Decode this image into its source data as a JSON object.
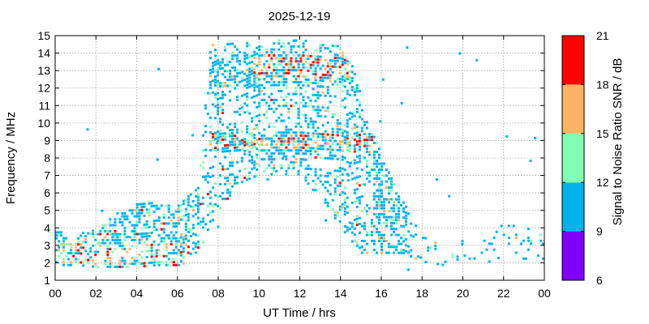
{
  "chart_data": {
    "type": "heatmap",
    "title": "2025-12-19",
    "xlabel": "UT Time / hrs",
    "ylabel": "Frequency / MHz",
    "xlim": [
      0,
      24
    ],
    "ylim": [
      1,
      15
    ],
    "x_ticks": [
      "00",
      "02",
      "04",
      "06",
      "08",
      "10",
      "12",
      "14",
      "16",
      "18",
      "20",
      "22",
      "00"
    ],
    "y_ticks": [
      "1",
      "2",
      "3",
      "4",
      "5",
      "6",
      "7",
      "8",
      "9",
      "10",
      "11",
      "12",
      "13",
      "14",
      "15"
    ],
    "grid": true,
    "colorbar": {
      "label": "Signal to Noise Ratio SNR / dB",
      "ticks": [
        "6",
        "9",
        "12",
        "15",
        "18",
        "21"
      ],
      "bands": [
        {
          "from": 6,
          "to": 9,
          "color": "#7f00ff"
        },
        {
          "from": 9,
          "to": 12,
          "color": "#00b4eb"
        },
        {
          "from": 12,
          "to": 15,
          "color": "#80ffb4"
        },
        {
          "from": 15,
          "to": 18,
          "color": "#ffb360"
        },
        {
          "from": 18,
          "to": 21,
          "color": "#ff0000"
        }
      ]
    },
    "activity_envelope": [
      {
        "time": 0.0,
        "fmin": 1.8,
        "fmax": 3.8
      },
      {
        "time": 1.0,
        "fmin": 1.8,
        "fmax": 3.6
      },
      {
        "time": 2.0,
        "fmin": 1.7,
        "fmax": 3.8
      },
      {
        "time": 3.0,
        "fmin": 1.7,
        "fmax": 4.8
      },
      {
        "time": 4.0,
        "fmin": 1.7,
        "fmax": 5.3
      },
      {
        "time": 5.0,
        "fmin": 1.8,
        "fmax": 5.4
      },
      {
        "time": 6.0,
        "fmin": 1.8,
        "fmax": 5.2
      },
      {
        "time": 6.5,
        "fmin": 2.0,
        "fmax": 5.8
      },
      {
        "time": 7.0,
        "fmin": 2.5,
        "fmax": 6.5
      },
      {
        "time": 7.5,
        "fmin": 4.0,
        "fmax": 14.5
      },
      {
        "time": 8.0,
        "fmin": 5.0,
        "fmax": 14.5
      },
      {
        "time": 9.0,
        "fmin": 6.5,
        "fmax": 14.5
      },
      {
        "time": 10.0,
        "fmin": 7.0,
        "fmax": 14.5
      },
      {
        "time": 11.0,
        "fmin": 7.0,
        "fmax": 14.8
      },
      {
        "time": 12.0,
        "fmin": 7.0,
        "fmax": 14.8
      },
      {
        "time": 13.0,
        "fmin": 5.5,
        "fmax": 14.5
      },
      {
        "time": 14.0,
        "fmin": 4.0,
        "fmax": 14.5
      },
      {
        "time": 14.5,
        "fmin": 3.0,
        "fmax": 13.5
      },
      {
        "time": 15.0,
        "fmin": 2.5,
        "fmax": 11.0
      },
      {
        "time": 16.0,
        "fmin": 2.5,
        "fmax": 8.0
      },
      {
        "time": 17.0,
        "fmin": 2.5,
        "fmax": 5.5
      },
      {
        "time": 18.0,
        "fmin": 2.0,
        "fmax": 3.5
      },
      {
        "time": 19.0,
        "fmin": 1.8,
        "fmax": 3.0
      },
      {
        "time": 20.0,
        "fmin": 2.0,
        "fmax": 3.2
      },
      {
        "time": 21.0,
        "fmin": 2.0,
        "fmax": 3.5
      },
      {
        "time": 22.0,
        "fmin": 2.0,
        "fmax": 4.2
      },
      {
        "time": 23.0,
        "fmin": 2.0,
        "fmax": 4.0
      },
      {
        "time": 24.0,
        "fmin": 2.0,
        "fmax": 4.5
      }
    ],
    "high_snr_regions": [
      {
        "time_start": 7.5,
        "time_end": 15.5,
        "freq_start": 8.5,
        "freq_end": 9.3,
        "snr": "18-21"
      },
      {
        "time_start": 9.5,
        "time_end": 14.5,
        "freq_start": 12.5,
        "freq_end": 13.8,
        "snr": "15-21"
      },
      {
        "time_start": 0.0,
        "time_end": 6.5,
        "freq_start": 1.8,
        "freq_end": 3.0,
        "snr": "15-21"
      }
    ]
  }
}
